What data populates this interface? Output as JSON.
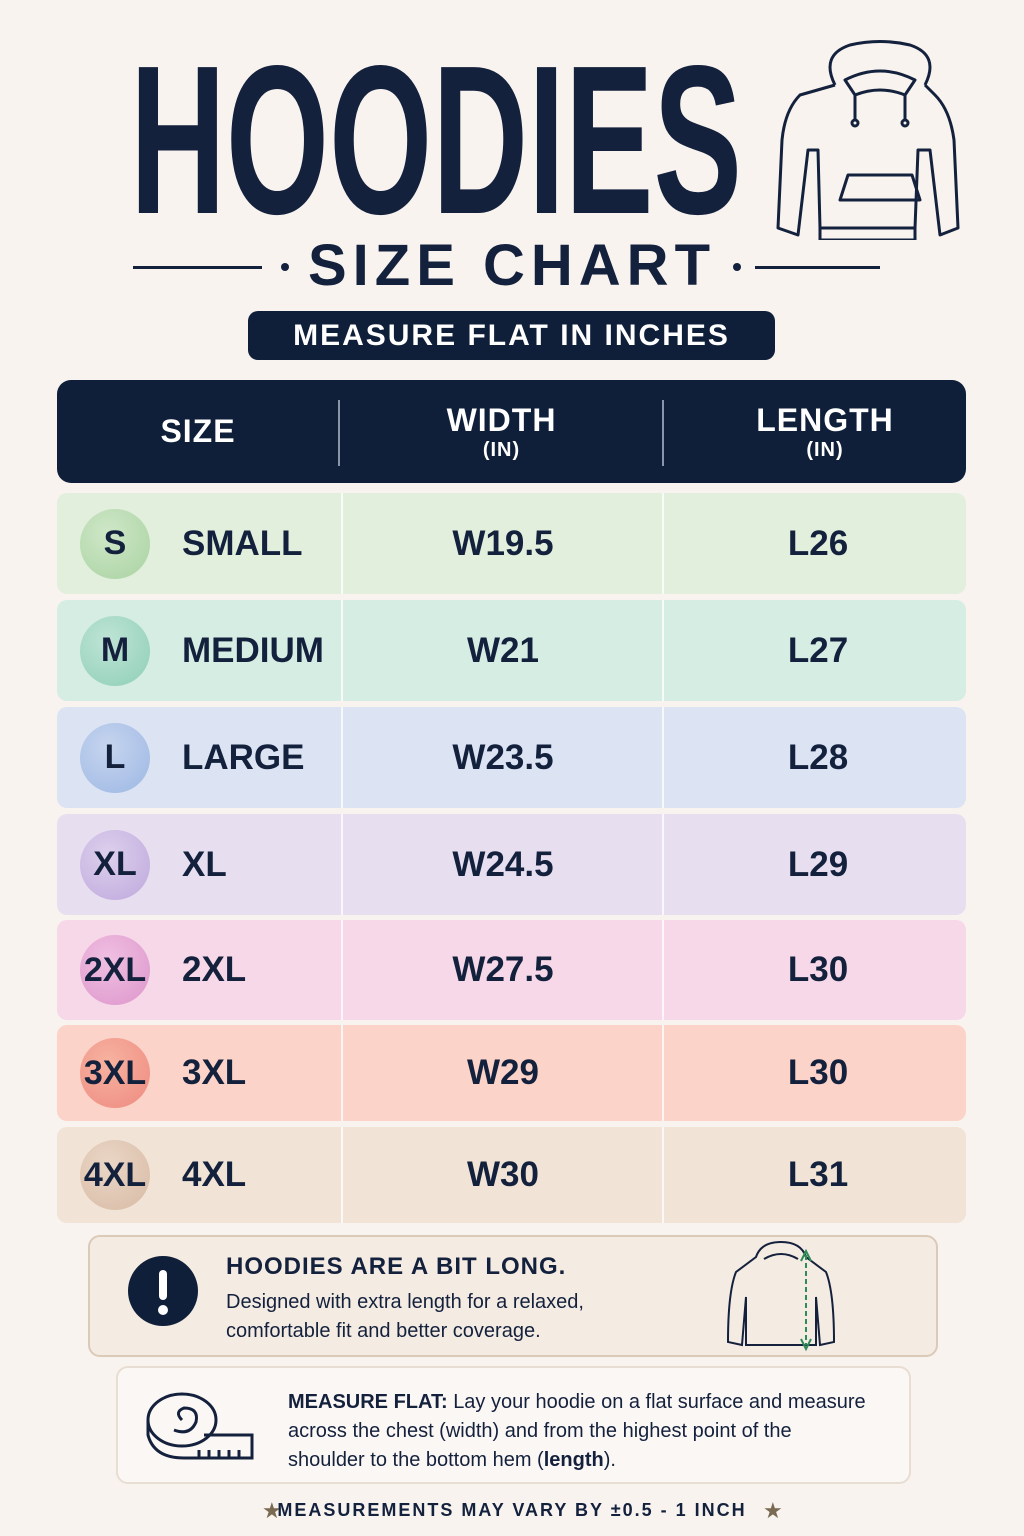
{
  "header": {
    "title": "HOODIES",
    "subtitle": "SIZE CHART",
    "badge": "MEASURE FLAT IN INCHES"
  },
  "table": {
    "columns": [
      {
        "label": "SIZE"
      },
      {
        "label": "WIDTH",
        "unit": "(IN)"
      },
      {
        "label": "LENGTH",
        "unit": "(IN)"
      }
    ],
    "rows": [
      [
        "S",
        "SMALL",
        "W19.5",
        "L26"
      ],
      [
        "M",
        "MEDIUM",
        "W21",
        "L27"
      ],
      [
        "L",
        "LARGE",
        "W23.5",
        "L28"
      ],
      [
        "XL",
        "XL",
        "W24.5",
        "L29"
      ],
      [
        "2XL",
        "2XL",
        "W27.5",
        "L30"
      ],
      [
        "3XL",
        "3XL",
        "W29",
        "L30"
      ],
      [
        "4XL",
        "4XL",
        "W30",
        "L31"
      ]
    ]
  },
  "note": {
    "title": "HOODIES ARE A BIT LONG.",
    "text": "Designed with extra length for a relaxed, comfortable fit and better coverage."
  },
  "measure": {
    "label": "MEASURE FLAT:",
    "text": [
      "Lay your hoodie on a flat surface and measure across the chest (width) and from the highest point of the shoulder to the bottom hem (",
      "length",
      ")."
    ]
  },
  "footer": "MEASUREMENTS MAY VARY BY ±0.5 - 1 INCH"
}
